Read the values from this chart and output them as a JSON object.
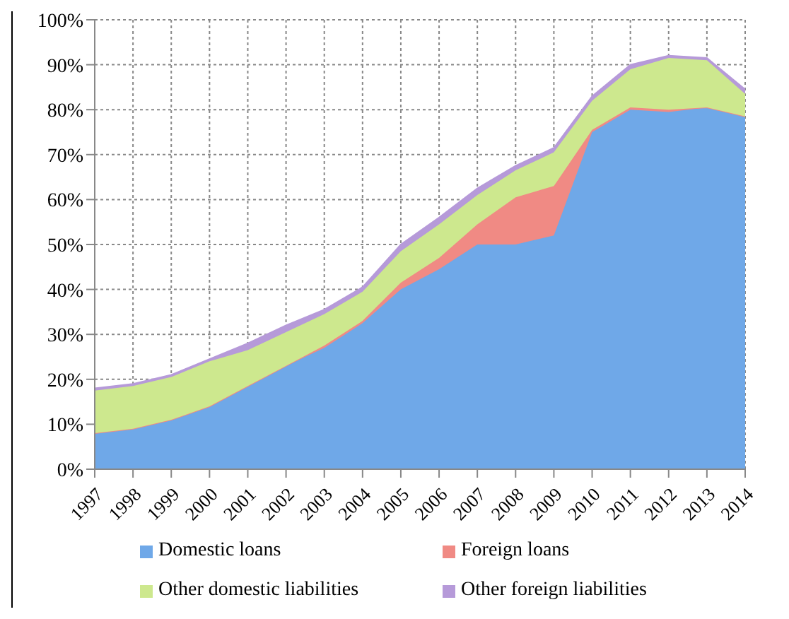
{
  "chart_data": {
    "type": "area",
    "stacked": true,
    "categories": [
      "1997",
      "1998",
      "1999",
      "2000",
      "2001",
      "2002",
      "2003",
      "2004",
      "2005",
      "2006",
      "2007",
      "2008",
      "2009",
      "2010",
      "2011",
      "2012",
      "2013",
      "2014"
    ],
    "series": [
      {
        "name": "Domestic loans",
        "color": "#6fa8e8",
        "values": [
          8,
          9,
          11,
          14,
          18.5,
          23,
          27,
          32.5,
          40,
          44.5,
          50,
          50,
          52,
          75,
          80,
          79.5,
          80.5,
          78.5
        ]
      },
      {
        "name": "Foreign loans",
        "color": "#f08a84",
        "values": [
          0,
          0,
          0,
          0,
          0,
          0,
          0.5,
          0.5,
          1.5,
          2.5,
          4.5,
          10.5,
          11,
          0.5,
          0.5,
          0.5,
          0,
          0
        ]
      },
      {
        "name": "Other domestic liabilities",
        "color": "#cde88e",
        "values": [
          9.5,
          9.5,
          9.5,
          10,
          8,
          7.5,
          7,
          6.5,
          7,
          7.5,
          6.5,
          6,
          7.5,
          6.5,
          8.5,
          11.5,
          10.5,
          5
        ]
      },
      {
        "name": "Other foreign liabilities",
        "color": "#b69ad9",
        "values": [
          0.5,
          0.5,
          0.5,
          0.5,
          1.5,
          1.5,
          1,
          1,
          1.5,
          1.5,
          1.5,
          1,
          1,
          1,
          1,
          0.5,
          0.5,
          1
        ]
      }
    ],
    "ylim": [
      0,
      100
    ],
    "yticks": [
      {
        "value": 0,
        "label": "0%"
      },
      {
        "value": 10,
        "label": "10%"
      },
      {
        "value": 20,
        "label": "20%"
      },
      {
        "value": 30,
        "label": "30%"
      },
      {
        "value": 40,
        "label": "40%"
      },
      {
        "value": 50,
        "label": "50%"
      },
      {
        "value": 60,
        "label": "60%"
      },
      {
        "value": 70,
        "label": "70%"
      },
      {
        "value": 80,
        "label": "80%"
      },
      {
        "value": 90,
        "label": "90%"
      },
      {
        "value": 100,
        "label": "100%"
      }
    ],
    "grid": true,
    "legend": "bottom"
  }
}
